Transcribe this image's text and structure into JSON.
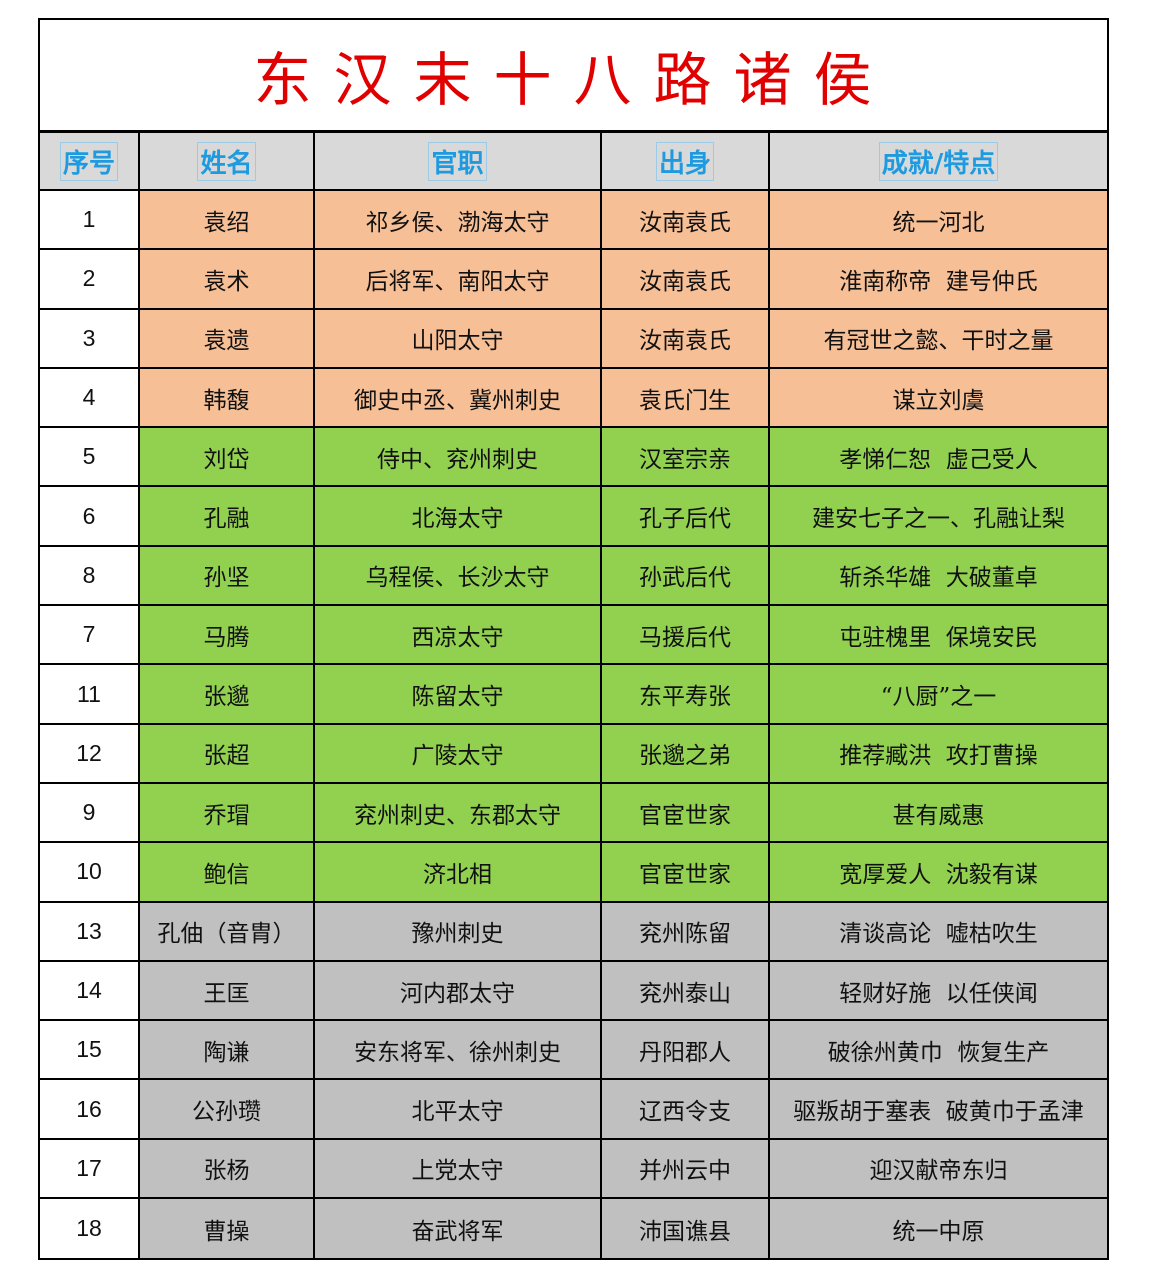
{
  "title": "东汉末十八路诸侯",
  "colors": {
    "orange": "#F7BF95",
    "green": "#92D050",
    "gray": "#C0C0C0",
    "header_bg": "#D9D9D9",
    "header_text": "#1E9BE0",
    "title": "#E00000"
  },
  "headers": [
    "序号",
    "姓名",
    "官职",
    "出身",
    "成就/特点"
  ],
  "rows": [
    {
      "no": "1",
      "name": "袁绍",
      "office": "祁乡侯、渤海太守",
      "origin": "汝南袁氏",
      "feat": "统一河北",
      "group": "orange"
    },
    {
      "no": "2",
      "name": "袁术",
      "office": "后将军、南阳太守",
      "origin": "汝南袁氏",
      "feat": "淮南称帝  建号仲氏",
      "group": "orange"
    },
    {
      "no": "3",
      "name": "袁遗",
      "office": "山阳太守",
      "origin": "汝南袁氏",
      "feat": "有冠世之懿、干时之量",
      "group": "orange"
    },
    {
      "no": "4",
      "name": "韩馥",
      "office": "御史中丞、冀州刺史",
      "origin": "袁氏门生",
      "feat": "谋立刘虞",
      "group": "orange"
    },
    {
      "no": "5",
      "name": "刘岱",
      "office": "侍中、兖州刺史",
      "origin": "汉室宗亲",
      "feat": "孝悌仁恕  虚己受人",
      "group": "green"
    },
    {
      "no": "6",
      "name": "孔融",
      "office": "北海太守",
      "origin": "孔子后代",
      "feat": "建安七子之一、孔融让梨",
      "group": "green"
    },
    {
      "no": "8",
      "name": "孙坚",
      "office": "乌程侯、长沙太守",
      "origin": "孙武后代",
      "feat": "斩杀华雄  大破董卓",
      "group": "green"
    },
    {
      "no": "7",
      "name": "马腾",
      "office": "西凉太守",
      "origin": "马援后代",
      "feat": "屯驻槐里  保境安民",
      "group": "green"
    },
    {
      "no": "11",
      "name": "张邈",
      "office": "陈留太守",
      "origin": "东平寿张",
      "feat": "“八厨”之一",
      "group": "green"
    },
    {
      "no": "12",
      "name": "张超",
      "office": "广陵太守",
      "origin": "张邈之弟",
      "feat": "推荐臧洪  攻打曹操",
      "group": "green"
    },
    {
      "no": "9",
      "name": "乔瑁",
      "office": "兖州刺史、东郡太守",
      "origin": "官宦世家",
      "feat": "甚有威惠",
      "group": "green"
    },
    {
      "no": "10",
      "name": "鲍信",
      "office": "济北相",
      "origin": "官宦世家",
      "feat": "宽厚爱人  沈毅有谋",
      "group": "green"
    },
    {
      "no": "13",
      "name": "孔伷（音胄）",
      "office": "豫州刺史",
      "origin": "兖州陈留",
      "feat": "清谈高论  嘘枯吹生",
      "group": "gray"
    },
    {
      "no": "14",
      "name": "王匡",
      "office": "河内郡太守",
      "origin": "兖州泰山",
      "feat": "轻财好施  以任侠闻",
      "group": "gray"
    },
    {
      "no": "15",
      "name": "陶谦",
      "office": "安东将军、徐州刺史",
      "origin": "丹阳郡人",
      "feat": "破徐州黄巾  恢复生产",
      "group": "gray"
    },
    {
      "no": "16",
      "name": "公孙瓒",
      "office": "北平太守",
      "origin": "辽西令支",
      "feat": "驱叛胡于塞表  破黄巾于孟津",
      "group": "gray"
    },
    {
      "no": "17",
      "name": "张杨",
      "office": "上党太守",
      "origin": "并州云中",
      "feat": "迎汉献帝东归",
      "group": "gray"
    },
    {
      "no": "18",
      "name": "曹操",
      "office": "奋武将军",
      "origin": "沛国谯县",
      "feat": "统一中原",
      "group": "gray"
    }
  ]
}
